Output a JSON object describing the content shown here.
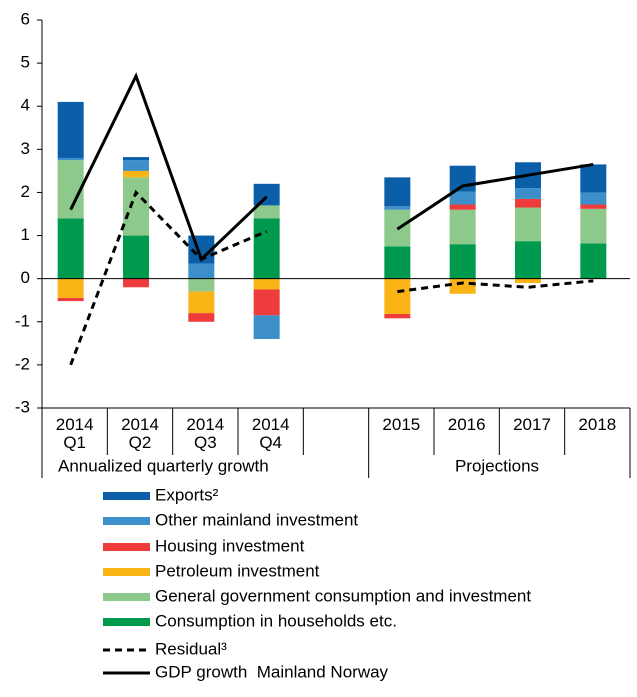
{
  "chart_data": {
    "type": "stacked_bar_line",
    "categories": [
      "2014 Q1",
      "2014 Q2",
      "2014 Q3",
      "2014 Q4",
      null,
      "2015",
      "2016",
      "2017",
      "2018"
    ],
    "groups": [
      "Annualized quarterly growth",
      "Projections"
    ],
    "ylim": [
      -3,
      6
    ],
    "yticks": [
      -3,
      -2,
      -1,
      0,
      1,
      2,
      3,
      4,
      5,
      6
    ],
    "series": [
      {
        "name": "Consumption in households etc.",
        "color": "#009a4e",
        "kind": "bar",
        "values": [
          1.4,
          1.0,
          0,
          1.4,
          null,
          0.75,
          0.8,
          0.87,
          0.82
        ]
      },
      {
        "name": "General government consumption and investment",
        "color": "#8cc98a",
        "kind": "bar",
        "values": [
          1.35,
          1.35,
          -0.3,
          0.3,
          null,
          0.85,
          0.8,
          0.78,
          0.8
        ]
      },
      {
        "name": "Petroleum investment",
        "color": "#fbb416",
        "kind": "bar",
        "values": [
          -0.45,
          0.15,
          -0.5,
          -0.25,
          null,
          -0.82,
          -0.35,
          -0.1,
          0
        ]
      },
      {
        "name": "Housing investment",
        "color": "#ee3b3b",
        "kind": "bar",
        "values": [
          -0.07,
          -0.2,
          -0.2,
          -0.6,
          null,
          -0.1,
          0.12,
          0.2,
          0.1
        ]
      },
      {
        "name": "Other mainland investment",
        "color": "#3c8fc8",
        "kind": "bar",
        "values": [
          0.05,
          0.25,
          0.35,
          -0.55,
          null,
          0.08,
          0.3,
          0.25,
          0.28
        ]
      },
      {
        "name": "Exports²",
        "color": "#0b5ea8",
        "kind": "bar",
        "values": [
          1.3,
          0.07,
          0.65,
          0.5,
          null,
          0.67,
          0.6,
          0.6,
          0.65
        ]
      },
      {
        "name": "Residual³",
        "color": "#000000",
        "kind": "line",
        "dashed": true,
        "values": [
          -2.0,
          2.0,
          0.45,
          1.1,
          null,
          -0.3,
          -0.1,
          -0.2,
          -0.05
        ]
      },
      {
        "name": "GDP growth  Mainland Norway",
        "color": "#000000",
        "kind": "line",
        "dashed": false,
        "values": [
          1.6,
          4.7,
          0.45,
          1.9,
          null,
          1.15,
          2.15,
          2.4,
          2.65
        ]
      }
    ]
  }
}
